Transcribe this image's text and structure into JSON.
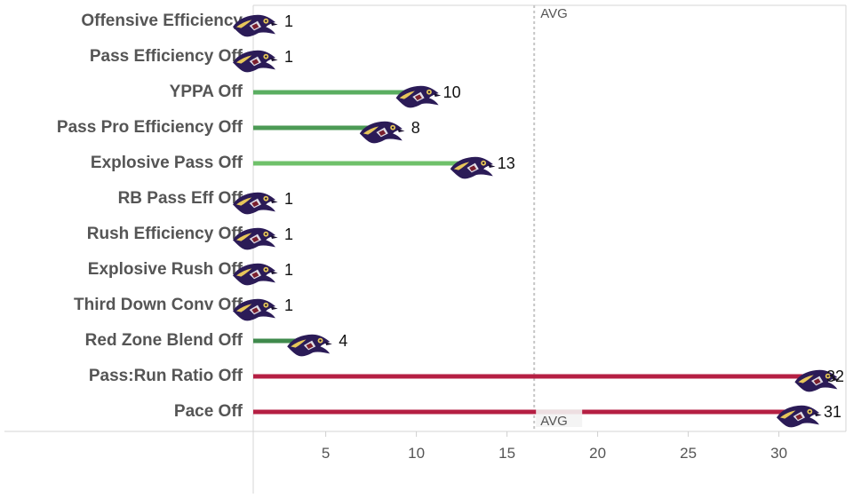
{
  "chart_data": {
    "type": "bar",
    "orientation": "horizontal",
    "categories": [
      "Offensive Efficiency",
      "Pass Efficiency Off",
      "YPPA Off",
      "Pass Pro Efficiency Off",
      "Explosive Pass Off",
      "RB Pass Eff Off",
      "Rush Efficiency Off",
      "Explosive Rush Off",
      "Third Down Conv Off",
      "Red Zone Blend Off",
      "Pass:Run Ratio Off",
      "Pace Off"
    ],
    "values": [
      1,
      1,
      10,
      8,
      13,
      1,
      1,
      1,
      1,
      4,
      32,
      31
    ],
    "bar_colors": [
      "#5aae61",
      "#5aae61",
      "#5aae61",
      "#4c9a55",
      "#6fc16a",
      "#5aae61",
      "#5aae61",
      "#5aae61",
      "#5aae61",
      "#3f8a4c",
      "#b51f43",
      "#b51f43"
    ],
    "data_labels": [
      "1",
      "1",
      "10",
      "8",
      "13",
      "1",
      "1",
      "1",
      "1",
      "4",
      "32",
      "31"
    ],
    "xlim": [
      0,
      34
    ],
    "x_ticks": [
      5,
      10,
      15,
      20,
      25,
      30
    ],
    "reference_line": {
      "label": "AVG",
      "value": 16.5
    },
    "marker_icon": "ravens-logo-icon",
    "xlabel": "",
    "ylabel": "",
    "title": "",
    "grid": false,
    "legend": "none"
  }
}
